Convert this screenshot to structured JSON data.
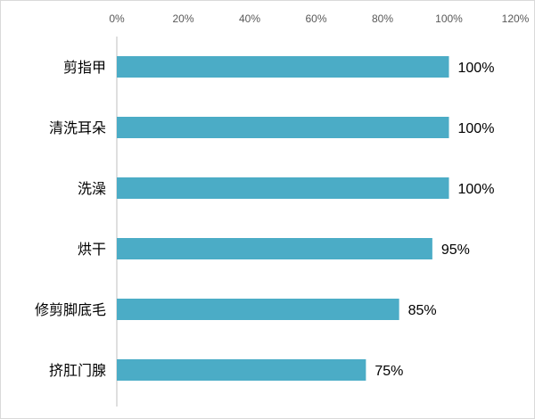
{
  "chart_data": {
    "type": "bar",
    "orientation": "horizontal",
    "categories": [
      "剪指甲",
      "清洗耳朵",
      "洗澡",
      "烘干",
      "修剪脚底毛",
      "挤肛门腺"
    ],
    "values": [
      100,
      100,
      100,
      95,
      85,
      75
    ],
    "data_labels": [
      "100%",
      "100%",
      "100%",
      "95%",
      "85%",
      "75%"
    ],
    "x_ticks": [
      "0%",
      "20%",
      "40%",
      "60%",
      "80%",
      "100%",
      "120%"
    ],
    "xlim": [
      0,
      120
    ],
    "x_axis_position": "top",
    "grid": false,
    "bar_color": "#4BACC6"
  }
}
